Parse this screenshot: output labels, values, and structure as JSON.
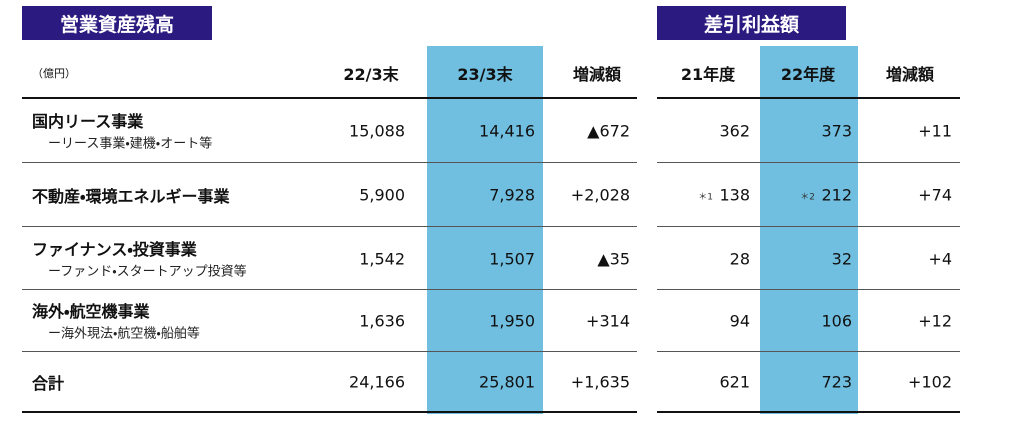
{
  "left": {
    "title": "営業資産残高",
    "unit": "（億円）",
    "headers": [
      "22/3末",
      "23/3末",
      "増減額"
    ]
  },
  "right": {
    "title": "差引利益額",
    "headers": [
      "21年度",
      "22年度",
      "増減額"
    ]
  },
  "rows": [
    {
      "label": "国内リース事業",
      "sublabel": "ーリース事業・建機・オート等",
      "assets": [
        "15,088",
        "14,416",
        "▲672"
      ],
      "profit": [
        "362",
        "373",
        "+11"
      ]
    },
    {
      "label": "不動産・環境エネルギー事業",
      "assets": [
        "5,900",
        "7,928",
        "+2,028"
      ],
      "profit": [
        {
          "note": "＊1",
          "value": "138"
        },
        {
          "note": "＊2",
          "value": "212"
        },
        "+74"
      ]
    },
    {
      "label": "ファイナンス・投資事業",
      "sublabel": "ーファンド・スタートアップ投資等",
      "assets": [
        "1,542",
        "1,507",
        "▲35"
      ],
      "profit": [
        "28",
        "32",
        "+4"
      ]
    },
    {
      "label": "海外・航空機事業",
      "sublabel": "ー海外現法・航空機・船舶等",
      "assets": [
        "1,636",
        "1,950",
        "+314"
      ],
      "profit": [
        "94",
        "106",
        "+12"
      ]
    },
    {
      "label": "合計",
      "assets": [
        "24,166",
        "25,801",
        "+1,635"
      ],
      "profit": [
        "621",
        "723",
        "+102"
      ]
    }
  ]
}
